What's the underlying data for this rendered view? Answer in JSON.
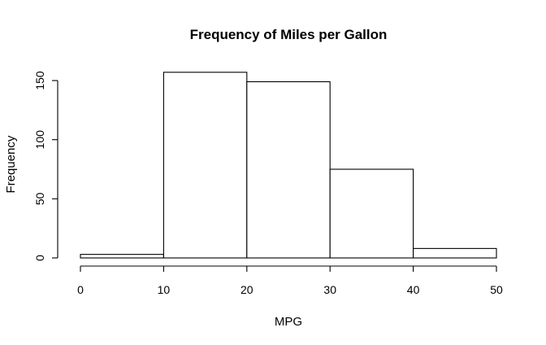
{
  "chart_data": {
    "type": "bar",
    "subtype": "histogram",
    "title": "Frequency of Miles per Gallon",
    "xlabel": "MPG",
    "ylabel": "Frequency",
    "bins": [
      {
        "start": 0,
        "end": 10,
        "value": 3
      },
      {
        "start": 10,
        "end": 20,
        "value": 157
      },
      {
        "start": 20,
        "end": 30,
        "value": 149
      },
      {
        "start": 30,
        "end": 40,
        "value": 75
      },
      {
        "start": 40,
        "end": 50,
        "value": 8
      }
    ],
    "xlim": [
      0,
      50
    ],
    "ylim": [
      0,
      150
    ],
    "xticks": [
      "0",
      "10",
      "20",
      "30",
      "40",
      "50"
    ],
    "yticks": [
      "0",
      "50",
      "100",
      "150"
    ],
    "grid": false,
    "legend": "none",
    "colors": {
      "bar_fill": "#ffffff",
      "bar_stroke": "#000000"
    }
  }
}
